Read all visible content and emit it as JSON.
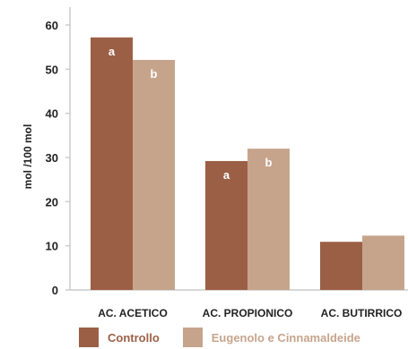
{
  "chart_data": {
    "type": "bar",
    "categories": [
      "AC. ACETICO",
      "AC. PROPIONICO",
      "AC. BUTIRRICO"
    ],
    "series": [
      {
        "name": "Controllo",
        "values": [
          57.2,
          29.2,
          10.9
        ],
        "color": "#9b5f45",
        "labels": [
          "a",
          "a",
          ""
        ]
      },
      {
        "name": "Eugenolo e Cinnamaldeide",
        "values": [
          52.1,
          32.0,
          12.3
        ],
        "color": "#c6a48c",
        "labels": [
          "b",
          "b",
          ""
        ]
      }
    ],
    "ylabel": "mol /100 mol",
    "ylim": [
      0,
      60
    ],
    "yticks": [
      0,
      10,
      20,
      30,
      40,
      50,
      60
    ],
    "legend_position": "bottom",
    "grid": false
  }
}
